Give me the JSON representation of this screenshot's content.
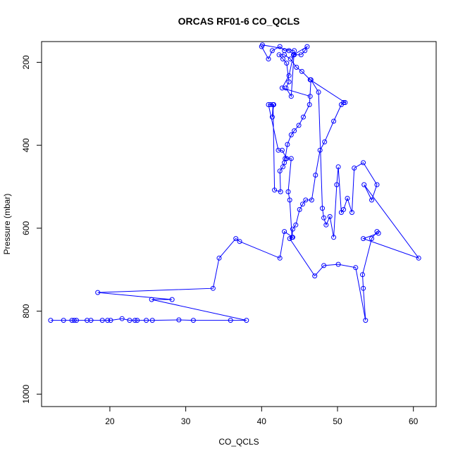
{
  "chart_data": {
    "type": "line",
    "title": "ORCAS RF01-6 CO_QCLS",
    "xlabel": "CO_QCLS",
    "ylabel": "Pressure (mbar)",
    "xlim": [
      11,
      63
    ],
    "ylim": [
      1030,
      150
    ],
    "y_reversed": true,
    "grid": false,
    "x_ticks": [
      {
        "value": 20,
        "label": "20"
      },
      {
        "value": 30,
        "label": "30"
      },
      {
        "value": 40,
        "label": "40"
      },
      {
        "value": 50,
        "label": "50"
      },
      {
        "value": 60,
        "label": "60"
      }
    ],
    "y_ticks": [
      {
        "value": 200,
        "label": "200"
      },
      {
        "value": 400,
        "label": "400"
      },
      {
        "value": 600,
        "label": "600"
      },
      {
        "value": 800,
        "label": "800"
      },
      {
        "value": 1000,
        "label": "1000"
      }
    ],
    "series": [
      {
        "color": "#0000ff",
        "marker": "open-circle",
        "x": [
          12.2,
          13.9,
          15.0,
          15.3,
          15.6,
          17.0,
          17.5,
          19.0,
          19.7,
          20.1,
          21.6,
          22.6,
          23.3,
          23.6,
          24.8,
          25.6,
          29.1,
          31.0,
          35.9,
          38.0,
          25.5,
          28.2,
          18.4,
          33.6,
          34.4,
          36.6,
          37.1,
          42.4,
          43.0,
          44.1,
          43.7,
          47.0,
          48.2,
          50.1,
          52.4,
          53.7,
          53.4,
          53.3,
          54.5,
          55.2,
          55.4,
          53.4,
          60.7,
          53.5,
          54.5,
          55.2,
          53.4,
          52.2,
          51.9,
          51.3,
          50.8,
          50.5,
          50.1,
          49.9,
          49.5,
          49.0,
          48.5,
          48.2,
          48.0,
          47.5,
          46.5,
          46.3,
          45.5,
          44.9,
          44.3,
          43.9,
          43.4,
          43.1,
          43.0,
          42.8,
          42.4,
          42.5,
          41.7,
          41.5,
          41.4,
          41.6,
          41.2,
          40.9,
          42.2,
          42.7,
          43.3,
          43.9,
          43.5,
          43.7,
          44.0,
          44.1,
          44.5,
          45.0,
          45.4,
          45.8,
          46.6,
          47.1,
          47.7,
          48.3,
          49.5,
          50.5,
          50.8,
          51.0,
          46.4,
          45.3,
          44.6,
          43.8,
          43.0,
          42.3,
          42.8,
          43.3,
          43.6,
          43.2,
          43.9,
          44.3,
          40.1,
          40.0,
          40.9,
          41.4,
          42.4,
          43.0,
          43.6,
          44.3,
          45.2,
          45.7,
          46.0,
          44.2,
          43.6,
          42.7,
          46.4
        ],
        "y": [
          822,
          822,
          822,
          822,
          822,
          822,
          822,
          822,
          822,
          822,
          818,
          822,
          822,
          822,
          822,
          822,
          821,
          822,
          822,
          822,
          772,
          772,
          755,
          745,
          672,
          625,
          632,
          672,
          608,
          622,
          625,
          715,
          690,
          687,
          695,
          822,
          745,
          712,
          625,
          608,
          612,
          625,
          672,
          495,
          532,
          495,
          442,
          455,
          562,
          528,
          555,
          562,
          452,
          495,
          622,
          572,
          592,
          575,
          552,
          272,
          242,
          302,
          332,
          352,
          365,
          375,
          398,
          432,
          442,
          452,
          462,
          512,
          508,
          302,
          332,
          302,
          302,
          302,
          412,
          412,
          432,
          432,
          512,
          532,
          622,
          602,
          592,
          555,
          542,
          532,
          532,
          472,
          412,
          392,
          342,
          302,
          297,
          297,
          242,
          222,
          212,
          192,
          182,
          182,
          192,
          202,
          247,
          262,
          282,
          172,
          158,
          162,
          192,
          172,
          162,
          172,
          172,
          182,
          182,
          172,
          162,
          182,
          232,
          262,
          282
        ]
      }
    ]
  }
}
